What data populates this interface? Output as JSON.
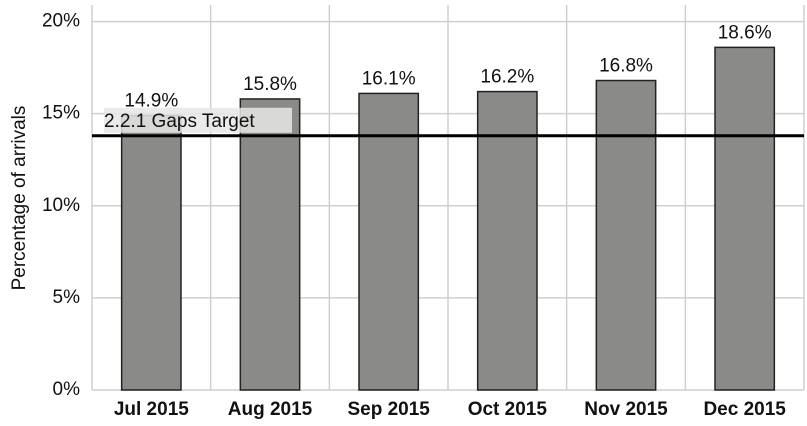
{
  "chart_data": {
    "type": "bar",
    "y_label": "Percentage of arrivals",
    "categories": [
      "Jul 2015",
      "Aug 2015",
      "Sep 2015",
      "Oct 2015",
      "Nov 2015",
      "Dec 2015"
    ],
    "values": [
      14.9,
      15.8,
      16.1,
      16.2,
      16.8,
      18.6
    ],
    "value_labels": [
      "14.9%",
      "15.8%",
      "16.1%",
      "16.2%",
      "16.8%",
      "18.6%"
    ],
    "color": "#8a8b89",
    "ylim": [
      0,
      20.9
    ],
    "yticks": [
      {
        "value": 0,
        "label": "0%"
      },
      {
        "value": 5,
        "label": "5%"
      },
      {
        "value": 10,
        "label": "10%"
      },
      {
        "value": 15,
        "label": "15%"
      },
      {
        "value": 20,
        "label": "20%"
      }
    ],
    "grid": true,
    "target": {
      "label": "2.2.1 Gaps Target",
      "value": 13.8
    }
  }
}
